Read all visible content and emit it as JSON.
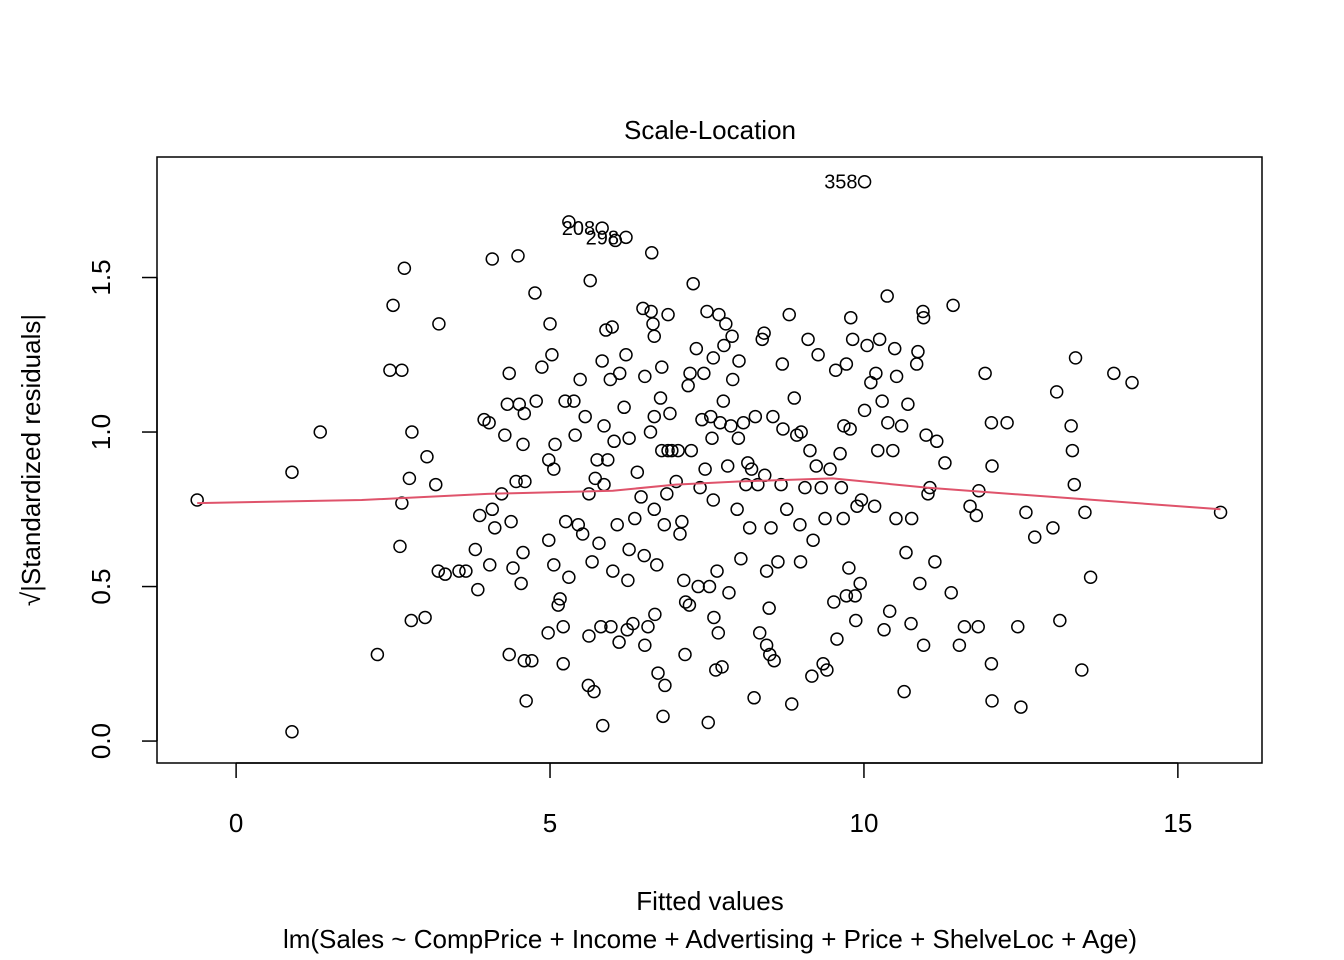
{
  "chart_data": {
    "type": "scatter",
    "title": "Scale-Location",
    "x_label": "Fitted values",
    "y_label": "√|Standardized residuals|",
    "subtitle": "lm(Sales ~ CompPrice + Income + Advertising + Price + ShelveLoc + Age)",
    "xlim": [
      -1.26,
      16.34
    ],
    "ylim": [
      -0.071,
      1.89
    ],
    "xticks": [
      0,
      5,
      10,
      15
    ],
    "yticks": [
      {
        "value": 0,
        "label": "0.0"
      },
      {
        "value": 0.5,
        "label": "0.5"
      },
      {
        "value": 1,
        "label": "1.0"
      },
      {
        "value": 1.5,
        "label": "1.5"
      }
    ],
    "point_color": "#000000",
    "series": [
      {
        "x": [
          -0.62,
          0.89,
          0.89,
          1.34,
          2.25,
          2.5,
          2.45,
          2.64,
          2.68,
          2.64,
          2.61,
          2.76,
          2.8,
          2.79,
          3.01,
          3.04,
          3.18,
          3.23,
          3.22,
          3.33,
          3.55,
          3.66,
          3.81,
          3.85,
          3.88,
          3.95,
          4.03,
          4.08,
          4.08,
          4.04,
          4.12,
          4.23,
          4.28,
          4.32,
          4.35,
          4.35,
          4.38,
          4.41,
          4.49,
          4.46,
          4.51,
          4.54,
          4.57,
          4.59,
          4.6,
          4.57,
          4.59,
          4.62,
          4.71,
          4.76,
          4.78,
          4.87,
          4.97,
          4.98,
          5.0,
          5.03,
          4.98,
          5.08,
          5.06,
          5.06,
          5.13,
          5.16,
          5.21,
          5.21,
          5.25,
          5.3,
          5.24,
          5.3,
          5.38,
          5.4,
          5.45,
          5.48,
          5.52,
          5.56,
          5.62,
          5.62,
          5.64,
          5.61,
          5.67,
          5.7,
          5.72,
          5.75,
          5.78,
          5.83,
          5.83,
          5.81,
          5.84,
          5.86,
          5.86,
          5.89,
          5.92,
          5.96,
          5.99,
          5.97,
          6.0,
          6.04,
          6.02,
          6.07,
          6.1,
          6.11,
          6.18,
          6.21,
          6.21,
          6.23,
          6.24,
          6.26,
          6.26,
          6.32,
          6.35,
          6.39,
          6.45,
          6.48,
          6.5,
          6.51,
          6.51,
          6.56,
          6.6,
          6.62,
          6.61,
          6.66,
          6.64,
          6.66,
          6.66,
          6.7,
          6.67,
          6.72,
          6.76,
          6.78,
          6.78,
          6.8,
          6.82,
          6.86,
          6.83,
          6.88,
          6.88,
          6.91,
          6.94,
          7.01,
          7.04,
          7.07,
          7.1,
          7.13,
          7.15,
          7.16,
          7.2,
          7.22,
          7.23,
          7.25,
          7.28,
          7.33,
          7.36,
          7.39,
          7.42,
          7.45,
          7.47,
          7.5,
          7.52,
          7.54,
          7.56,
          7.58,
          7.6,
          7.6,
          7.61,
          7.64,
          7.66,
          7.68,
          7.69,
          7.71,
          7.74,
          7.76,
          7.77,
          7.8,
          7.83,
          7.85,
          7.88,
          7.9,
          7.91,
          7.98,
          8.0,
          8.01,
          8.04,
          8.08,
          8.12,
          8.15,
          8.18,
          8.21,
          8.25,
          8.27,
          8.31,
          8.34,
          8.38,
          8.41,
          8.42,
          8.45,
          8.45,
          8.49,
          8.5,
          8.52,
          8.55,
          8.57,
          8.63,
          8.68,
          8.7,
          8.71,
          8.77,
          8.81,
          8.85,
          8.89,
          8.93,
          8.98,
          8.99,
          9.0,
          9.06,
          9.11,
          9.14,
          9.17,
          9.19,
          9.24,
          9.27,
          9.32,
          9.35,
          9.38,
          9.41,
          9.46,
          9.52,
          9.55,
          9.57,
          9.62,
          9.64,
          9.67,
          9.68,
          9.72,
          9.72,
          9.76,
          9.78,
          9.79,
          9.82,
          9.86,
          9.87,
          9.89,
          9.94,
          9.96,
          10.01,
          10.01,
          10.05,
          10.11,
          10.17,
          10.19,
          10.22,
          10.25,
          10.29,
          10.32,
          10.37,
          10.38,
          10.41,
          10.46,
          10.49,
          10.51,
          10.52,
          10.6,
          10.64,
          10.67,
          10.7,
          10.75,
          10.76,
          10.84,
          10.86,
          10.89,
          10.94,
          10.95,
          10.95,
          10.99,
          11.02,
          11.05,
          11.13,
          11.16,
          11.29,
          11.39,
          11.42,
          11.52,
          11.6,
          11.69,
          11.79,
          11.82,
          11.83,
          11.93,
          12.03,
          12.04,
          12.04,
          12.03,
          12.28,
          12.45,
          12.5,
          12.58,
          12.72,
          13.01,
          13.07,
          13.12,
          13.3,
          13.32,
          13.35,
          13.37,
          13.47,
          13.52,
          13.61,
          13.98,
          14.27,
          15.68
        ],
        "values": [
          0.78,
          0.87,
          0.03,
          1.0,
          0.28,
          1.41,
          1.2,
          1.2,
          1.53,
          0.77,
          0.63,
          0.85,
          1.0,
          0.39,
          0.4,
          0.92,
          0.83,
          1.35,
          0.55,
          0.54,
          0.55,
          0.55,
          0.62,
          0.49,
          0.73,
          1.04,
          1.03,
          1.56,
          0.75,
          0.57,
          0.69,
          0.8,
          0.99,
          1.09,
          1.19,
          0.28,
          0.71,
          0.56,
          1.57,
          0.84,
          1.09,
          0.51,
          0.96,
          1.06,
          0.84,
          0.61,
          0.26,
          0.13,
          0.26,
          1.45,
          1.1,
          1.21,
          0.35,
          0.65,
          1.35,
          1.25,
          0.91,
          0.96,
          0.88,
          0.57,
          0.44,
          0.46,
          0.37,
          0.25,
          0.71,
          0.53,
          1.1,
          1.68,
          1.1,
          0.99,
          0.7,
          1.17,
          0.67,
          1.05,
          0.8,
          0.34,
          1.49,
          0.18,
          0.58,
          0.16,
          0.85,
          0.91,
          0.64,
          1.66,
          1.23,
          0.37,
          0.05,
          0.83,
          1.02,
          1.33,
          0.91,
          1.17,
          1.34,
          0.37,
          0.55,
          1.62,
          0.97,
          0.7,
          0.32,
          1.19,
          1.08,
          1.63,
          1.25,
          0.36,
          0.52,
          0.98,
          0.62,
          0.38,
          0.72,
          0.87,
          0.79,
          1.4,
          0.6,
          1.18,
          0.31,
          0.37,
          1.0,
          1.58,
          1.39,
          0.75,
          1.35,
          1.31,
          1.05,
          0.57,
          0.41,
          0.22,
          1.11,
          1.21,
          0.94,
          0.08,
          0.7,
          0.8,
          0.18,
          1.38,
          0.94,
          1.06,
          0.94,
          0.84,
          0.94,
          0.67,
          0.71,
          0.52,
          0.28,
          0.45,
          1.15,
          0.44,
          1.19,
          0.94,
          1.48,
          1.27,
          0.5,
          0.82,
          1.04,
          1.19,
          0.88,
          1.39,
          0.06,
          0.5,
          1.05,
          0.98,
          1.24,
          0.78,
          0.4,
          0.23,
          0.55,
          0.35,
          1.38,
          1.03,
          0.24,
          1.1,
          1.28,
          1.35,
          0.89,
          0.48,
          1.02,
          1.31,
          1.17,
          0.75,
          0.98,
          1.23,
          0.59,
          1.03,
          0.83,
          0.9,
          0.69,
          0.88,
          0.14,
          1.05,
          0.83,
          0.35,
          1.3,
          1.32,
          0.86,
          0.55,
          0.31,
          0.43,
          0.28,
          0.69,
          1.05,
          0.26,
          0.58,
          0.83,
          1.22,
          1.01,
          0.75,
          1.38,
          0.12,
          1.11,
          0.99,
          0.7,
          0.58,
          1.0,
          0.82,
          1.3,
          0.94,
          0.21,
          0.65,
          0.89,
          1.25,
          0.82,
          0.25,
          0.72,
          0.23,
          0.88,
          0.45,
          1.2,
          0.33,
          0.93,
          0.82,
          0.72,
          1.02,
          0.47,
          1.22,
          0.56,
          1.01,
          1.37,
          1.3,
          0.47,
          0.39,
          0.76,
          0.51,
          0.78,
          1.81,
          1.07,
          1.28,
          1.16,
          0.76,
          1.19,
          0.94,
          1.3,
          1.1,
          0.36,
          1.44,
          1.03,
          0.42,
          0.94,
          1.27,
          0.72,
          1.18,
          1.02,
          0.16,
          0.61,
          1.09,
          0.38,
          0.72,
          1.22,
          1.26,
          0.51,
          1.39,
          1.37,
          0.31,
          0.99,
          0.8,
          0.82,
          0.58,
          0.97,
          0.9,
          0.48,
          1.41,
          0.31,
          0.37,
          0.76,
          0.73,
          0.37,
          0.81,
          1.19,
          0.25,
          0.13,
          0.89,
          1.03,
          1.03,
          0.37,
          0.11,
          0.74,
          0.66,
          0.69,
          1.13,
          0.39,
          1.02,
          0.94,
          0.83,
          1.24,
          0.23,
          0.74,
          0.53,
          1.19,
          1.16,
          0.74
        ]
      }
    ],
    "smooth": {
      "color": "#df536b",
      "x": [
        -0.62,
        2,
        4,
        6,
        7,
        8,
        9.5,
        11,
        13,
        15.68
      ],
      "y": [
        0.77,
        0.78,
        0.8,
        0.81,
        0.83,
        0.84,
        0.85,
        0.82,
        0.79,
        0.75
      ]
    },
    "annotations": [
      {
        "text": "358",
        "x": 10.01,
        "y": 1.81
      },
      {
        "text": "208",
        "x": 5.83,
        "y": 1.66
      },
      {
        "text": "298",
        "x": 6.21,
        "y": 1.63
      }
    ]
  }
}
